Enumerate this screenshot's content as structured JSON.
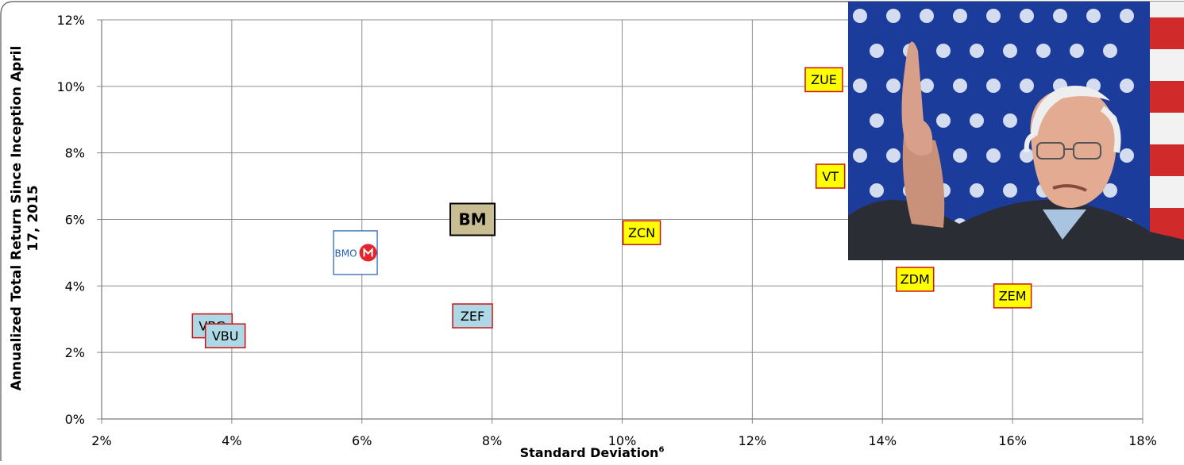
{
  "chart_data": {
    "type": "scatter",
    "xlabel": "Standard Deviation",
    "xlabel_superscript": "6",
    "ylabel": "Annualized Total Return Since Inception April 17, 2015",
    "xlim": [
      2,
      18
    ],
    "ylim": [
      0,
      12
    ],
    "x_ticks": [
      "2%",
      "4%",
      "6%",
      "8%",
      "10%",
      "12%",
      "14%",
      "16%",
      "18%"
    ],
    "y_ticks": [
      "0%",
      "2%",
      "4%",
      "6%",
      "8%",
      "10%",
      "12%"
    ],
    "grid": true,
    "points": [
      {
        "label": "VBG",
        "x": 3.7,
        "y": 2.8,
        "style": "blue"
      },
      {
        "label": "VBU",
        "x": 3.9,
        "y": 2.5,
        "style": "blue"
      },
      {
        "label": "BMO",
        "x": 5.9,
        "y": 5.0,
        "style": "logo"
      },
      {
        "label": "BM",
        "x": 7.7,
        "y": 6.0,
        "style": "tan"
      },
      {
        "label": "ZEF",
        "x": 7.7,
        "y": 3.1,
        "style": "blue"
      },
      {
        "label": "ZCN",
        "x": 10.3,
        "y": 5.6,
        "style": "yellow"
      },
      {
        "label": "ZUE",
        "x": 13.1,
        "y": 10.2,
        "style": "yellow"
      },
      {
        "label": "VT",
        "x": 13.2,
        "y": 7.3,
        "style": "yellow"
      },
      {
        "label": "ZDM",
        "x": 14.5,
        "y": 4.2,
        "style": "yellow"
      },
      {
        "label": "ZEM",
        "x": 16.0,
        "y": 3.7,
        "style": "yellow"
      }
    ]
  },
  "colors": {
    "grid": "#8c8c8c",
    "yellow_fill": "#ffff00",
    "blue_fill": "#add8e6",
    "tan_fill": "#c8bd93",
    "marker_border": "#d01010",
    "bmo_red": "#e3262d",
    "bmo_blue": "#1f5fae"
  },
  "overlay_photo": {
    "description_icon": "photo-overlay",
    "flag_icon": "flag-icon"
  }
}
